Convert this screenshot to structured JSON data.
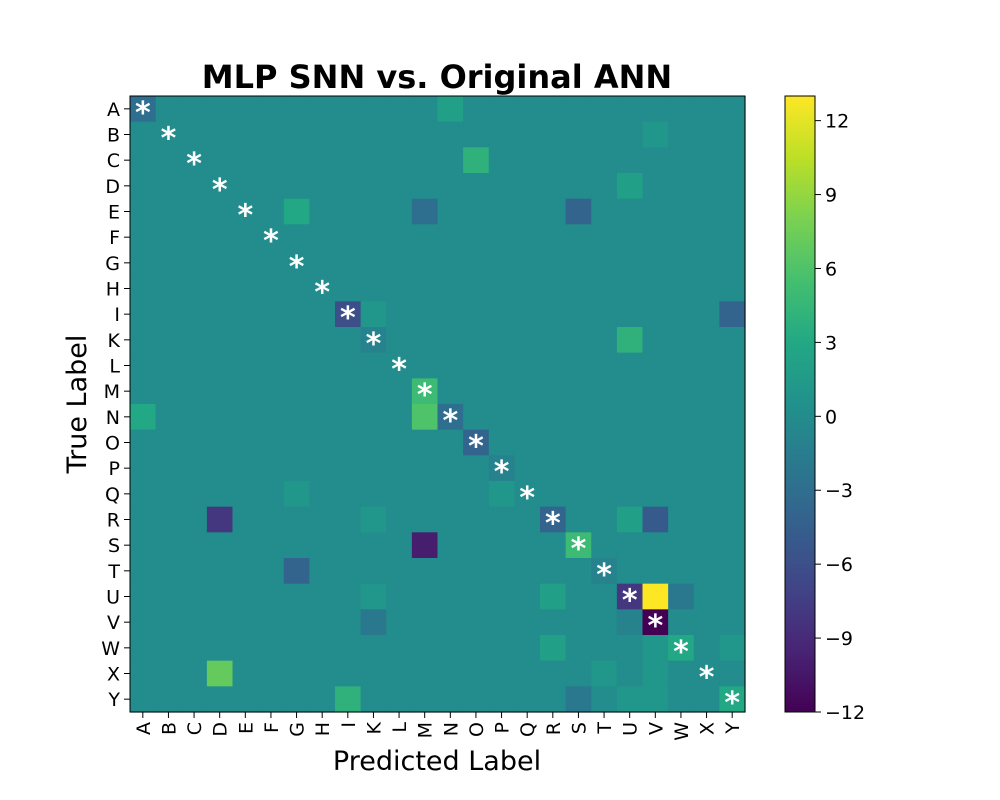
{
  "chart_data": {
    "type": "heatmap",
    "title": "MLP SNN vs. Original ANN",
    "xlabel": "Predicted Label",
    "ylabel": "True Label",
    "labels": [
      "A",
      "B",
      "C",
      "D",
      "E",
      "F",
      "G",
      "H",
      "I",
      "K",
      "L",
      "M",
      "N",
      "O",
      "P",
      "Q",
      "R",
      "S",
      "T",
      "U",
      "V",
      "W",
      "X",
      "Y"
    ],
    "colormap": "viridis",
    "vmin": -12,
    "vmax": 13,
    "colorbar_ticks": [
      12,
      9,
      6,
      3,
      0,
      -3,
      -6,
      -9,
      -12
    ],
    "colorbar_tick_labels": [
      "12",
      "9",
      "6",
      "3",
      "0",
      "−3",
      "−6",
      "−9",
      "−12"
    ],
    "diagonal_marker": "*",
    "cells": [
      {
        "row": "A",
        "col": "A",
        "value": -3
      },
      {
        "row": "A",
        "col": "N",
        "value": 2
      },
      {
        "row": "B",
        "col": "V",
        "value": 1
      },
      {
        "row": "C",
        "col": "O",
        "value": 4
      },
      {
        "row": "D",
        "col": "U",
        "value": 2
      },
      {
        "row": "E",
        "col": "G",
        "value": 3
      },
      {
        "row": "E",
        "col": "M",
        "value": -3
      },
      {
        "row": "E",
        "col": "S",
        "value": -4
      },
      {
        "row": "I",
        "col": "I",
        "value": -6
      },
      {
        "row": "I",
        "col": "K",
        "value": 1
      },
      {
        "row": "I",
        "col": "Y",
        "value": -4
      },
      {
        "row": "K",
        "col": "K",
        "value": -1
      },
      {
        "row": "K",
        "col": "U",
        "value": 4
      },
      {
        "row": "M",
        "col": "M",
        "value": 5
      },
      {
        "row": "N",
        "col": "A",
        "value": 3
      },
      {
        "row": "N",
        "col": "M",
        "value": 6
      },
      {
        "row": "N",
        "col": "N",
        "value": -3
      },
      {
        "row": "O",
        "col": "O",
        "value": -4
      },
      {
        "row": "P",
        "col": "P",
        "value": -1
      },
      {
        "row": "Q",
        "col": "G",
        "value": 1
      },
      {
        "row": "Q",
        "col": "P",
        "value": 1
      },
      {
        "row": "R",
        "col": "D",
        "value": -8
      },
      {
        "row": "R",
        "col": "K",
        "value": 1
      },
      {
        "row": "R",
        "col": "R",
        "value": -4
      },
      {
        "row": "R",
        "col": "U",
        "value": 2
      },
      {
        "row": "R",
        "col": "V",
        "value": -5
      },
      {
        "row": "S",
        "col": "M",
        "value": -10
      },
      {
        "row": "S",
        "col": "S",
        "value": 5
      },
      {
        "row": "T",
        "col": "G",
        "value": -4
      },
      {
        "row": "T",
        "col": "T",
        "value": -1
      },
      {
        "row": "U",
        "col": "K",
        "value": 1
      },
      {
        "row": "U",
        "col": "R",
        "value": 2
      },
      {
        "row": "U",
        "col": "U",
        "value": -8
      },
      {
        "row": "U",
        "col": "V",
        "value": 13
      },
      {
        "row": "U",
        "col": "W",
        "value": -2
      },
      {
        "row": "V",
        "col": "K",
        "value": -2
      },
      {
        "row": "V",
        "col": "U",
        "value": -1
      },
      {
        "row": "V",
        "col": "V",
        "value": -12
      },
      {
        "row": "W",
        "col": "R",
        "value": 2
      },
      {
        "row": "W",
        "col": "V",
        "value": 1
      },
      {
        "row": "W",
        "col": "W",
        "value": 3
      },
      {
        "row": "W",
        "col": "Y",
        "value": 1
      },
      {
        "row": "X",
        "col": "D",
        "value": 7
      },
      {
        "row": "X",
        "col": "T",
        "value": 1
      },
      {
        "row": "X",
        "col": "V",
        "value": 1
      },
      {
        "row": "Y",
        "col": "I",
        "value": 4
      },
      {
        "row": "Y",
        "col": "S",
        "value": -2
      },
      {
        "row": "Y",
        "col": "U",
        "value": 1
      },
      {
        "row": "Y",
        "col": "V",
        "value": 1
      },
      {
        "row": "Y",
        "col": "Y",
        "value": 3
      }
    ]
  }
}
